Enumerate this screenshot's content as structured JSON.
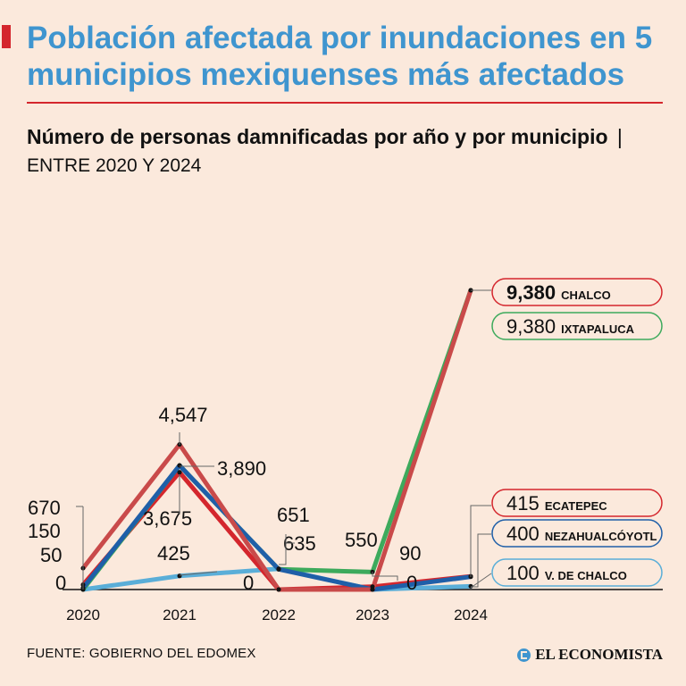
{
  "header": {
    "title": "Población afectada por inundaciones en 5 municipios mexiquenses más afectados",
    "subtitle_bold": "Número de personas damnificadas por año y por municipio",
    "subtitle_sep": "|",
    "subtitle_range": "ENTRE 2020 Y 2024"
  },
  "footer": {
    "source": "FUENTE: GOBIERNO DEL EDOMEX",
    "brand": "EL ECONOMISTA"
  },
  "colors": {
    "background": "#fbe9dc",
    "title": "#3f95cf",
    "accent": "#d4262d"
  },
  "chart_data": {
    "type": "line",
    "title": "Número de personas damnificadas por año y por municipio",
    "xlabel": "",
    "ylabel": "",
    "categories": [
      "2020",
      "2021",
      "2022",
      "2023",
      "2024"
    ],
    "ylim": [
      0,
      9600
    ],
    "grid": false,
    "series": [
      {
        "name": "V. DE CHALCO",
        "color": "#5aaed8",
        "values": [
          0,
          425,
          651,
          0,
          100
        ]
      },
      {
        "name": "ECATEPEC",
        "color": "#d4262d",
        "values": [
          150,
          3675,
          0,
          90,
          415
        ]
      },
      {
        "name": "IXTAPALUCA",
        "color": "#3daa5c",
        "values": [
          0,
          3890,
          635,
          550,
          9380
        ]
      },
      {
        "name": "NEZAHUALCÓYOTL",
        "color": "#1f5fa8",
        "values": [
          50,
          3890,
          635,
          0,
          400
        ]
      },
      {
        "name": "CHALCO",
        "color": "#c94a4a",
        "values": [
          670,
          4547,
          0,
          0,
          9380
        ]
      }
    ],
    "value_labels": [
      {
        "text": "670",
        "year": "2020",
        "value": 670
      },
      {
        "text": "150",
        "year": "2020",
        "value": 150
      },
      {
        "text": "50",
        "year": "2020",
        "value": 50
      },
      {
        "text": "0",
        "year": "2020",
        "value": 0
      },
      {
        "text": "4,547",
        "year": "2021",
        "value": 4547
      },
      {
        "text": "3,890",
        "year": "2021",
        "value": 3890
      },
      {
        "text": "3,675",
        "year": "2021",
        "value": 3675
      },
      {
        "text": "425",
        "year": "2021",
        "value": 425
      },
      {
        "text": "651",
        "year": "2022",
        "value": 651
      },
      {
        "text": "635",
        "year": "2022",
        "value": 635
      },
      {
        "text": "0",
        "year": "2022",
        "value": 0
      },
      {
        "text": "550",
        "year": "2023",
        "value": 550
      },
      {
        "text": "90",
        "year": "2023",
        "value": 90
      },
      {
        "text": "0",
        "year": "2023",
        "value": 0
      }
    ],
    "legend": [
      {
        "value": "9,380",
        "name": "CHALCO",
        "color": "#d4262d",
        "bold": true
      },
      {
        "value": "9,380",
        "name": "IXTAPALUCA",
        "color": "#3daa5c",
        "bold": false
      },
      {
        "value": "415",
        "name": "ECATEPEC",
        "color": "#d4262d",
        "bold": false
      },
      {
        "value": "400",
        "name": "NEZAHUALCÓYOTL",
        "color": "#1f5fa8",
        "bold": false
      },
      {
        "value": "100",
        "name": "V. DE CHALCO",
        "color": "#5aaed8",
        "bold": false
      }
    ]
  }
}
